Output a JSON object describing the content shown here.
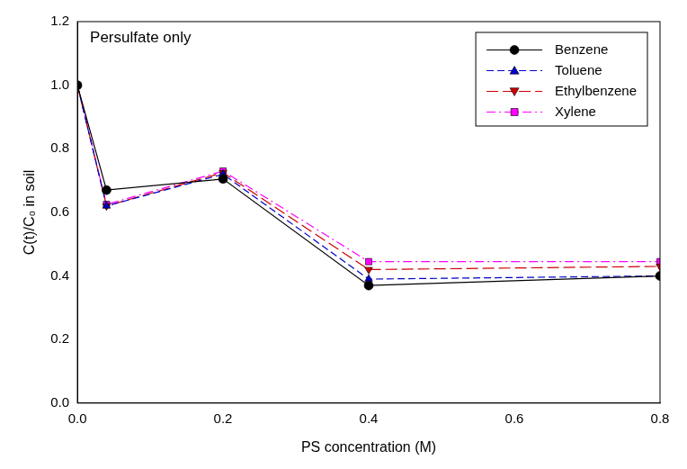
{
  "chart_data": {
    "type": "line",
    "annotation": "Persulfate only",
    "x_label": "PS concentration (M)",
    "y_label": "C(t)/C₀ in soil",
    "x": [
      0,
      0.04,
      0.2,
      0.4,
      0.8
    ],
    "series": [
      {
        "name": "Benzene",
        "color": "#000000",
        "marker": "circle",
        "line_style": "solid",
        "values": [
          1.0,
          0.67,
          0.705,
          0.37,
          0.4
        ]
      },
      {
        "name": "Toluene",
        "color": "#0000cc",
        "marker": "triangle",
        "line_style": "dashed",
        "values": [
          1.0,
          0.62,
          0.72,
          0.39,
          0.4
        ]
      },
      {
        "name": "Ethylbenzene",
        "color": "#cc0000",
        "marker": "triangle_down",
        "line_style": "long_dash",
        "values": [
          1.0,
          0.62,
          0.725,
          0.42,
          0.43
        ]
      },
      {
        "name": "Xylene",
        "color": "#ff00ff",
        "marker": "square",
        "line_style": "dash_dot",
        "values": [
          1.0,
          0.625,
          0.73,
          0.445,
          0.445
        ]
      }
    ],
    "xlim": [
      0,
      0.8
    ],
    "xticks": [
      {
        "value": 0,
        "label": "0.0"
      },
      0.2,
      0.4,
      0.6,
      0.8
    ],
    "ylim": [
      0,
      1.2
    ],
    "yticks": [
      {
        "value": 0,
        "label": "0.0"
      },
      0.2,
      0.4,
      0.6,
      0.8,
      {
        "value": 1,
        "label": "1.0"
      },
      1.2
    ],
    "grid": false,
    "legend": "upper right"
  }
}
